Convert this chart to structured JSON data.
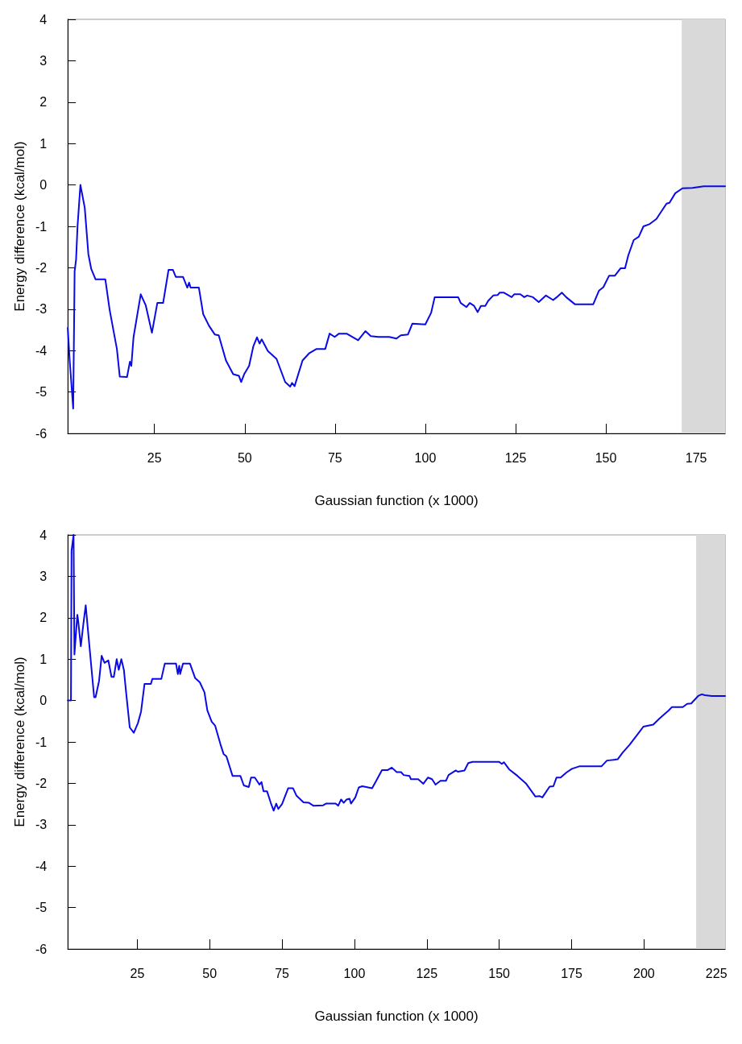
{
  "chart_data": [
    {
      "type": "line",
      "xlabel": "Gaussian function (x 1000)",
      "ylabel": "Energy difference (kcal/mol)",
      "xlim": [
        1,
        183
      ],
      "ylim": [
        -6,
        4
      ],
      "xticks": [
        25,
        50,
        75,
        100,
        125,
        150,
        175
      ],
      "yticks": [
        -6,
        -5,
        -4,
        -3,
        -2,
        -1,
        0,
        1,
        2,
        3,
        4
      ],
      "grid": false,
      "marker": "none",
      "line_style": "solid",
      "bands": [
        {
          "axis": "x",
          "from": 171,
          "to": 183,
          "color": "#d9d9d9"
        }
      ],
      "series": [
        {
          "color": "#0a0ae6",
          "x": [
            1,
            1.5,
            2.5,
            2.9,
            3.3,
            3.7,
            4.5,
            5.7,
            6.7,
            7.5,
            8.7,
            11.4,
            12.6,
            14.6,
            15.4,
            17.4,
            18.2,
            18.6,
            19.2,
            21.2,
            22.6,
            24.3,
            25.8,
            27.4,
            28.9,
            30.1,
            30.9,
            32.9,
            34.1,
            34.6,
            35,
            37.3,
            38.5,
            40.1,
            41.7,
            42.8,
            44.8,
            46.8,
            48.4,
            49,
            49.9,
            51.2,
            52.4,
            53.4,
            54.1,
            54.7,
            56.4,
            58.8,
            61.2,
            62.6,
            63.1,
            63.8,
            66,
            67.9,
            69.9,
            72.3,
            73.5,
            74.9,
            76.1,
            78.2,
            81.4,
            83.4,
            84.9,
            87,
            90,
            92,
            93.2,
            95.2,
            96.4,
            100,
            101.6,
            102.6,
            109.1,
            109.8,
            111.4,
            112.3,
            113.5,
            114.5,
            115.4,
            116.6,
            117.4,
            118.8,
            120,
            120.6,
            121.7,
            123.9,
            124.6,
            126.3,
            127.4,
            128.2,
            129.8,
            131.4,
            133.4,
            135.4,
            136.4,
            137.8,
            139,
            141.4,
            146.5,
            148.1,
            149.3,
            150.9,
            152.5,
            154.1,
            155.3,
            156.2,
            157.7,
            159.1,
            160.4,
            162,
            164,
            165.2,
            166.8,
            167.6,
            169.2,
            171.2,
            174,
            177.1,
            183
          ],
          "values": [
            -3.45,
            -4.2,
            -5.4,
            -2.08,
            -1.8,
            -1,
            0,
            -0.55,
            -1.67,
            -2.03,
            -2.28,
            -2.28,
            -3.02,
            -3.96,
            -4.63,
            -4.64,
            -4.27,
            -4.37,
            -3.68,
            -2.64,
            -2.91,
            -3.57,
            -2.85,
            -2.85,
            -2.05,
            -2.05,
            -2.22,
            -2.22,
            -2.48,
            -2.36,
            -2.48,
            -2.48,
            -3.12,
            -3.4,
            -3.61,
            -3.63,
            -4.24,
            -4.57,
            -4.61,
            -4.76,
            -4.56,
            -4.37,
            -3.89,
            -3.68,
            -3.83,
            -3.73,
            -4.01,
            -4.2,
            -4.76,
            -4.87,
            -4.78,
            -4.86,
            -4.24,
            -4.06,
            -3.96,
            -3.96,
            -3.59,
            -3.67,
            -3.59,
            -3.59,
            -3.75,
            -3.53,
            -3.65,
            -3.67,
            -3.67,
            -3.71,
            -3.63,
            -3.61,
            -3.35,
            -3.37,
            -3.09,
            -2.71,
            -2.71,
            -2.85,
            -2.95,
            -2.85,
            -2.92,
            -3.07,
            -2.92,
            -2.92,
            -2.8,
            -2.67,
            -2.66,
            -2.6,
            -2.6,
            -2.71,
            -2.64,
            -2.64,
            -2.71,
            -2.67,
            -2.71,
            -2.83,
            -2.67,
            -2.78,
            -2.71,
            -2.6,
            -2.71,
            -2.88,
            -2.88,
            -2.55,
            -2.47,
            -2.19,
            -2.19,
            -2.01,
            -2.01,
            -1.7,
            -1.33,
            -1.25,
            -1,
            -0.95,
            -0.82,
            -0.66,
            -0.45,
            -0.43,
            -0.2,
            -0.08,
            -0.07,
            -0.03,
            -0.03
          ]
        }
      ]
    },
    {
      "type": "line",
      "xlabel": "Gaussian function (x 1000)",
      "ylabel": "Energy difference (kcal/mol)",
      "xlim": [
        1,
        228
      ],
      "ylim": [
        -6,
        4
      ],
      "xticks": [
        25,
        50,
        75,
        100,
        125,
        150,
        175,
        200,
        225
      ],
      "yticks": [
        -6,
        -5,
        -4,
        -3,
        -2,
        -1,
        0,
        1,
        2,
        3,
        4
      ],
      "grid": false,
      "marker": "none",
      "line_style": "solid",
      "bands": [
        {
          "axis": "x",
          "from": 218,
          "to": 228,
          "color": "#d9d9d9"
        }
      ],
      "series": [
        {
          "color": "#0a0ae6",
          "x": [
            1,
            2.1,
            2.3,
            3,
            3.3,
            4.3,
            4.6,
            5.5,
            6.4,
            7.2,
            8.2,
            10.1,
            10.6,
            11.8,
            12.7,
            13.7,
            15,
            16.1,
            16.9,
            17.9,
            18.6,
            19.5,
            20.4,
            21.1,
            22.4,
            23.8,
            25.2,
            26.3,
            27.5,
            29.7,
            30.2,
            33.3,
            34.5,
            38.4,
            39,
            39.5,
            39.8,
            40.8,
            43.2,
            45,
            46.6,
            48.2,
            49.2,
            50.7,
            51.9,
            53.7,
            54.8,
            55.8,
            57.9,
            60.6,
            61.8,
            63.5,
            64.3,
            65.6,
            67.2,
            67.9,
            68.6,
            69.8,
            71.1,
            72.1,
            73,
            73.7,
            75,
            77.1,
            78.8,
            80,
            82.4,
            84.3,
            85.8,
            89.2,
            90.2,
            93.5,
            94.4,
            95.4,
            96.3,
            97.3,
            98.3,
            98.8,
            100.3,
            101.5,
            102.7,
            106.1,
            107.6,
            109.5,
            111.5,
            112.9,
            114.6,
            116.1,
            117,
            119,
            119.5,
            122,
            123.8,
            125.4,
            126.8,
            128,
            129.7,
            131.6,
            132.5,
            135,
            135.7,
            138,
            139.3,
            140.8,
            149.9,
            150.9,
            151.6,
            153.4,
            156.3,
            159.2,
            162.5,
            164,
            164.9,
            167.4,
            168.7,
            169.8,
            171.2,
            173.2,
            175.1,
            177.6,
            185.3,
            187.2,
            190.9,
            192.6,
            195,
            198.2,
            199.8,
            203.2,
            205.4,
            208.5,
            209.6,
            213.4,
            214.9,
            216.3,
            218.7,
            220,
            221,
            223.4,
            228
          ],
          "values": [
            0,
            0,
            3.62,
            4,
            1.11,
            2.07,
            1.92,
            1.31,
            1.86,
            2.3,
            1.52,
            0.08,
            0.08,
            0.47,
            1.08,
            0.91,
            0.97,
            0.57,
            0.57,
            1,
            0.74,
            1,
            0.73,
            0.23,
            -0.65,
            -0.78,
            -0.55,
            -0.27,
            0.4,
            0.4,
            0.52,
            0.52,
            0.89,
            0.89,
            0.64,
            0.84,
            0.64,
            0.89,
            0.89,
            0.54,
            0.44,
            0.2,
            -0.24,
            -0.51,
            -0.61,
            -1.05,
            -1.29,
            -1.35,
            -1.82,
            -1.82,
            -2.05,
            -2.09,
            -1.86,
            -1.86,
            -2.03,
            -1.97,
            -2.19,
            -2.19,
            -2.47,
            -2.66,
            -2.49,
            -2.62,
            -2.5,
            -2.12,
            -2.12,
            -2.3,
            -2.46,
            -2.47,
            -2.54,
            -2.53,
            -2.49,
            -2.49,
            -2.54,
            -2.39,
            -2.47,
            -2.39,
            -2.37,
            -2.49,
            -2.34,
            -2.1,
            -2.07,
            -2.12,
            -1.93,
            -1.68,
            -1.68,
            -1.62,
            -1.73,
            -1.73,
            -1.8,
            -1.82,
            -1.9,
            -1.9,
            -2.01,
            -1.86,
            -1.9,
            -2.03,
            -1.94,
            -1.94,
            -1.8,
            -1.69,
            -1.72,
            -1.69,
            -1.51,
            -1.48,
            -1.48,
            -1.53,
            -1.49,
            -1.66,
            -1.82,
            -2,
            -2.32,
            -2.31,
            -2.34,
            -2.08,
            -2.07,
            -1.86,
            -1.86,
            -1.74,
            -1.65,
            -1.59,
            -1.59,
            -1.45,
            -1.42,
            -1.26,
            -1.07,
            -0.78,
            -0.63,
            -0.58,
            -0.43,
            -0.24,
            -0.16,
            -0.16,
            -0.08,
            -0.07,
            0.11,
            0.15,
            0.13,
            0.11,
            0.11
          ]
        }
      ]
    }
  ]
}
